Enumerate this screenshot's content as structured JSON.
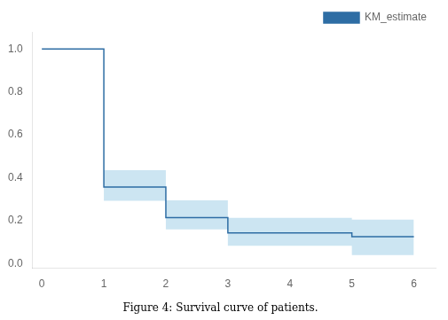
{
  "chart_data": {
    "type": "line",
    "line_style": "step",
    "title": "Figure 4: Survival curve of patients.",
    "x": [
      0,
      1,
      1,
      2,
      2,
      3,
      3,
      5,
      5,
      6
    ],
    "series": [
      {
        "name": "KM_estimate",
        "color": "#2e6da4",
        "values": [
          1.0,
          1.0,
          0.357,
          0.357,
          0.214,
          0.214,
          0.143,
          0.143,
          0.125,
          0.125
        ],
        "ci": {
          "upper": [
            1.0,
            1.0,
            0.435,
            0.435,
            0.295,
            0.295,
            0.213,
            0.213,
            0.205,
            0.205
          ],
          "lower": [
            1.0,
            1.0,
            0.293,
            0.293,
            0.16,
            0.16,
            0.083,
            0.083,
            0.04,
            0.04
          ],
          "color": "#aad4ea"
        }
      }
    ],
    "xlim": [
      -0.15,
      6.35
    ],
    "xticks": [
      0,
      1,
      2,
      3,
      4,
      5,
      6
    ],
    "ylim": [
      -0.02,
      1.08
    ],
    "yticks": [
      {
        "value": 0.0,
        "label": "0.0"
      },
      {
        "value": 0.2,
        "label": "0.2"
      },
      {
        "value": 0.4,
        "label": "0.4"
      },
      {
        "value": 0.6,
        "label": "0.6"
      },
      {
        "value": 0.8,
        "label": "0.8"
      },
      {
        "value": 1.0,
        "label": "1.0"
      }
    ],
    "grid": false,
    "legend": "upper right"
  }
}
